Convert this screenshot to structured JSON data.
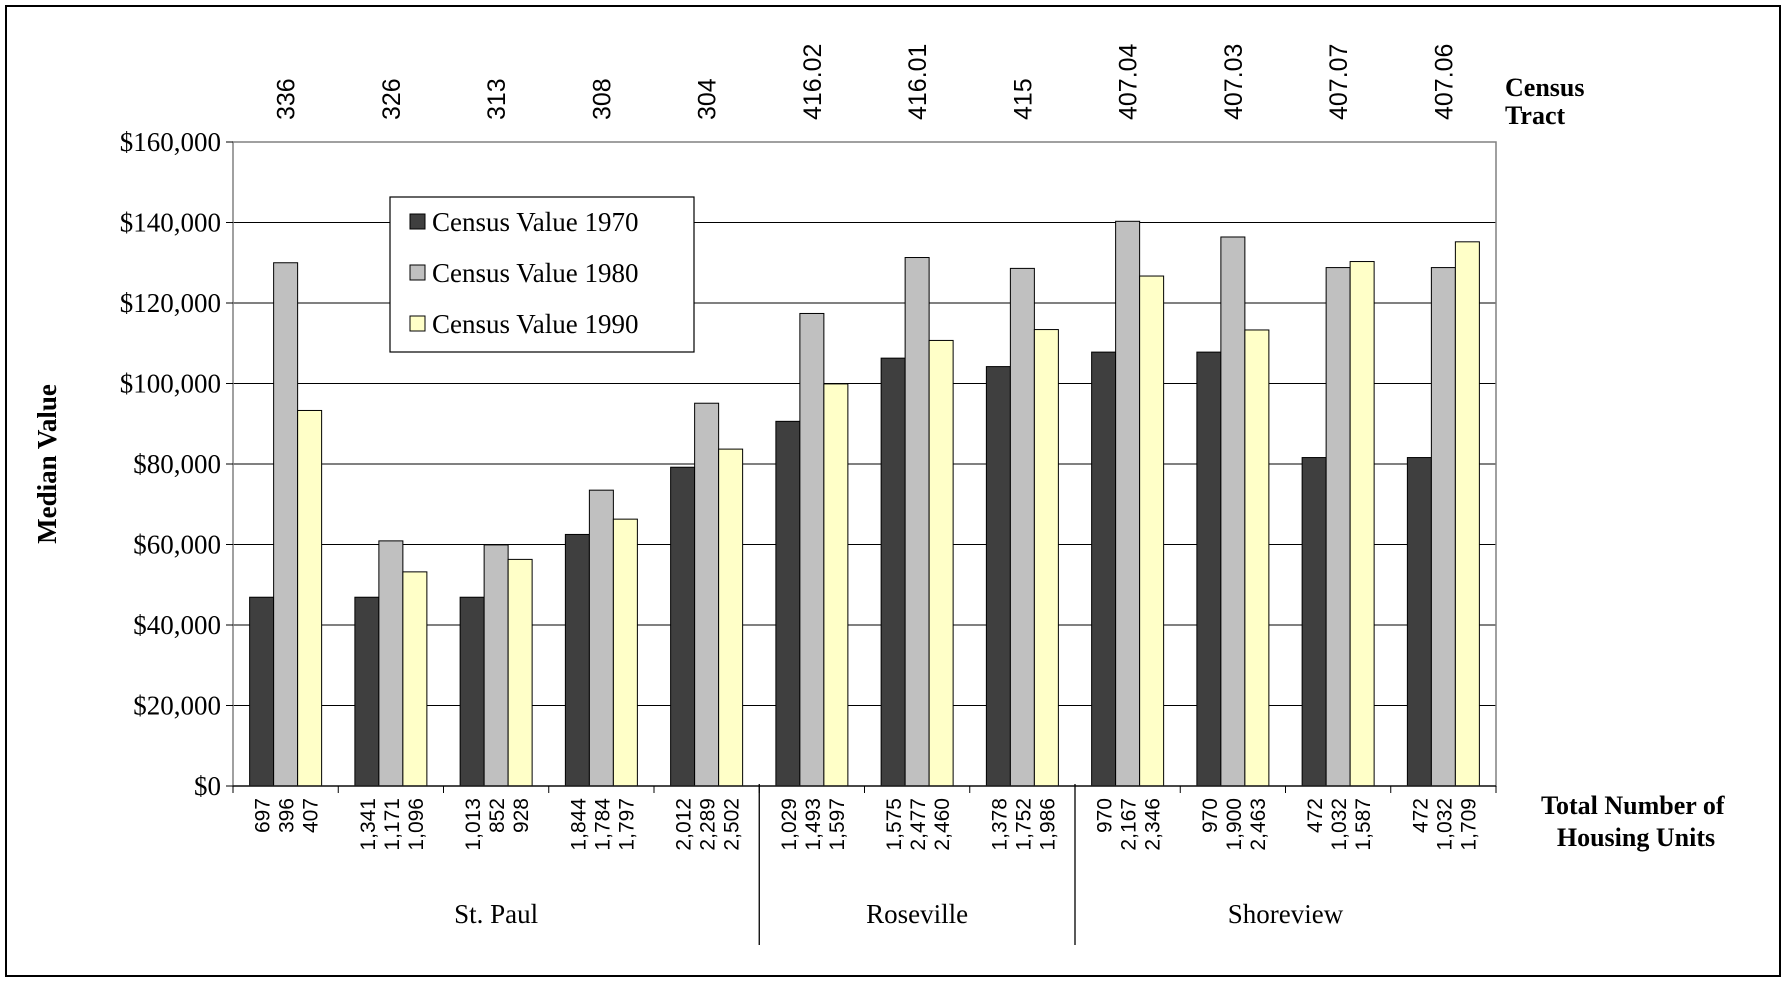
{
  "chart_data": {
    "type": "bar",
    "ylabel": "Median Value",
    "top_axis_label": [
      "Census",
      "Tract"
    ],
    "bottom_axis_label": [
      "Total Number of",
      "Housing Units"
    ],
    "ylim": [
      0,
      160000
    ],
    "y_ticks": [
      "$0",
      "$20,000",
      "$40,000",
      "$60,000",
      "$80,000",
      "$100,000",
      "$120,000",
      "$140,000",
      "$160,000"
    ],
    "grid": "horizontal",
    "legend_placement": "top-left inside plot",
    "categories": [
      "336",
      "326",
      "313",
      "308",
      "304",
      "416.02",
      "416.01",
      "415",
      "407.04",
      "407.03",
      "407.07",
      "407.06"
    ],
    "series": [
      {
        "name": "Census Value 1970",
        "color": "#3f3f3f",
        "values": [
          46900,
          46900,
          46900,
          62500,
          79200,
          90600,
          106300,
          104200,
          107800,
          107800,
          81600,
          81600
        ]
      },
      {
        "name": "Census Value 1980",
        "color": "#c0c0c0",
        "values": [
          130000,
          60900,
          59900,
          73500,
          95100,
          117400,
          131300,
          128600,
          140300,
          136400,
          128800,
          128800
        ]
      },
      {
        "name": "Census Value 1990",
        "color": "#ffffc8",
        "values": [
          93300,
          53200,
          56300,
          66300,
          83700,
          99900,
          110700,
          113400,
          126700,
          113300,
          130300,
          135200
        ]
      }
    ],
    "housing_units": [
      [
        "697",
        "396",
        "407"
      ],
      [
        "1,341",
        "1,171",
        "1,096"
      ],
      [
        "1,013",
        "852",
        "928"
      ],
      [
        "1,844",
        "1,784",
        "1,797"
      ],
      [
        "2,012",
        "2,289",
        "2,502"
      ],
      [
        "1,029",
        "1,493",
        "1,597"
      ],
      [
        "1,575",
        "2,477",
        "2,460"
      ],
      [
        "1,378",
        "1,752",
        "1,986"
      ],
      [
        "970",
        "2,167",
        "2,346"
      ],
      [
        "970",
        "1,900",
        "2,463"
      ],
      [
        "472",
        "1,032",
        "1,587"
      ],
      [
        "472",
        "1,032",
        "1,709"
      ]
    ],
    "groups": [
      {
        "name": "St. Paul",
        "count": 5
      },
      {
        "name": "Roseville",
        "count": 3
      },
      {
        "name": "Shoreview",
        "count": 4
      }
    ]
  }
}
